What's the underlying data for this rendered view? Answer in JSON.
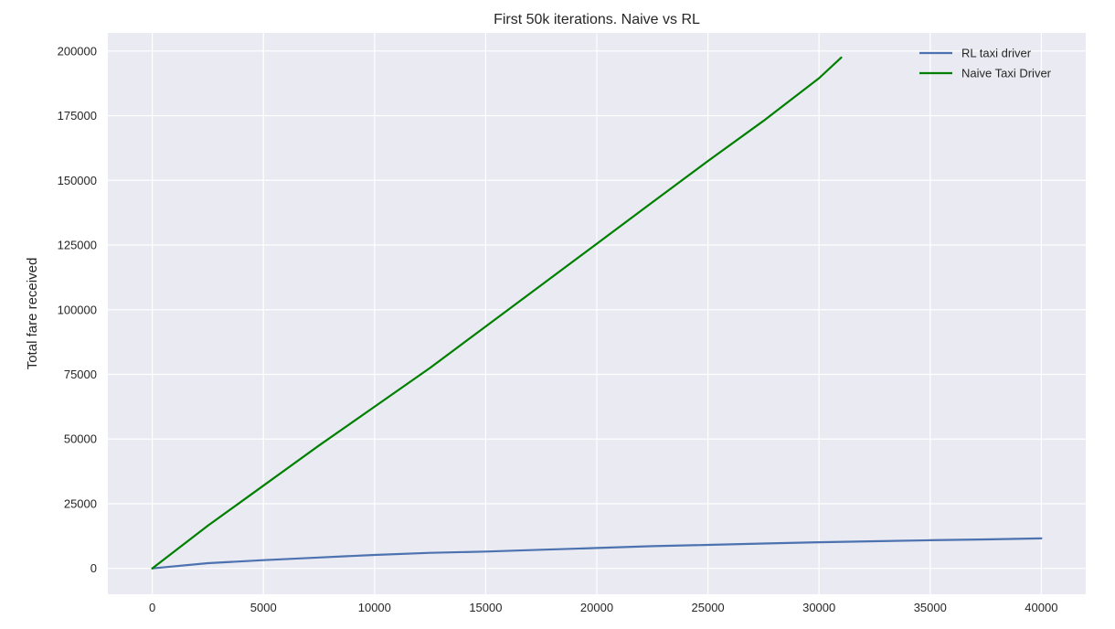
{
  "chart_data": {
    "type": "line",
    "title": "First 50k iterations. Naive vs RL",
    "xlabel": "",
    "ylabel": "Total fare received",
    "xlim": [
      -2000,
      42000
    ],
    "ylim": [
      -10000,
      207000
    ],
    "xticks": [
      0,
      5000,
      10000,
      15000,
      20000,
      25000,
      30000,
      35000,
      40000
    ],
    "yticks": [
      0,
      25000,
      50000,
      75000,
      100000,
      125000,
      150000,
      175000,
      200000
    ],
    "grid": true,
    "legend_position": "top-right",
    "background_color": "#eaeaf2",
    "grid_color": "#ffffff",
    "series": [
      {
        "name": "RL taxi driver",
        "color": "#4c72b0",
        "x": [
          0,
          2500,
          5000,
          7500,
          10000,
          12500,
          15000,
          17500,
          20000,
          22500,
          25000,
          27500,
          30000,
          32500,
          35000,
          37500,
          40000
        ],
        "y": [
          0,
          2000,
          3200,
          4200,
          5200,
          6000,
          6500,
          7200,
          7900,
          8600,
          9100,
          9600,
          10100,
          10500,
          10900,
          11200,
          11600
        ]
      },
      {
        "name": "Naive Taxi Driver",
        "color": "#008000",
        "x": [
          0,
          2500,
          5000,
          7500,
          10000,
          12500,
          15000,
          17500,
          20000,
          22500,
          25000,
          27500,
          30000,
          31000
        ],
        "y": [
          0,
          16500,
          32000,
          47500,
          62500,
          77500,
          93500,
          109500,
          125500,
          141500,
          157500,
          173000,
          189500,
          197500
        ]
      }
    ]
  }
}
